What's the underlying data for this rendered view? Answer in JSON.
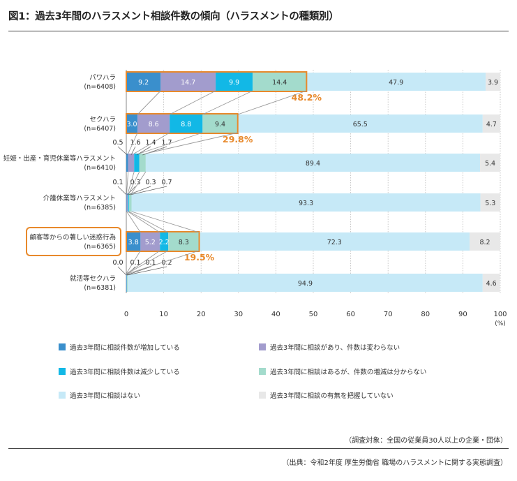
{
  "title": "図1：過去3年間のハラスメント相談件数の傾向（ハラスメントの種類別）",
  "notes": {
    "target": "（調査対象：全国の従業員30人以上の企業・団体）",
    "source": "（出典：令和2年度 厚生労働省 職場のハラスメントに関する実態調査）"
  },
  "chart_data": {
    "type": "bar",
    "orientation": "horizontal",
    "stacked": true,
    "xlim": [
      0,
      100
    ],
    "x_ticks": [
      "0",
      "10",
      "20",
      "30",
      "40",
      "50",
      "60",
      "70",
      "80",
      "90",
      "100"
    ],
    "x_unit": "(%)",
    "categories": [
      {
        "name": "パワハラ",
        "n": "(n=6408)",
        "total_text": "48.2%",
        "highlight": true,
        "label_highlight": false
      },
      {
        "name": "セクハラ",
        "n": "(n=6407)",
        "total_text": "29.8%",
        "highlight": true,
        "label_highlight": false
      },
      {
        "name": "妊娠・出産・育児休業等ハラスメント",
        "n": "(n=6410)",
        "total_text": "",
        "highlight": false,
        "label_highlight": false
      },
      {
        "name": "介護休業等ハラスメント",
        "n": "(n=6385)",
        "total_text": "",
        "highlight": false,
        "label_highlight": false
      },
      {
        "name": "顧客等からの著しい迷惑行為",
        "n": "(n=6365)",
        "total_text": "19.5%",
        "highlight": true,
        "label_highlight": true
      },
      {
        "name": "就活等セクハラ",
        "n": "(n=6381)",
        "total_text": "",
        "highlight": false,
        "label_highlight": false
      }
    ],
    "series": [
      {
        "name": "過去3年間に相談件数が増加している",
        "color": "#3a8fcc",
        "values": [
          9.2,
          3.0,
          0.5,
          0.1,
          3.8,
          0.0
        ],
        "labels": [
          "9.2",
          "3.0",
          "0.5",
          "0.1",
          "3.8",
          "0.0"
        ]
      },
      {
        "name": "過去3年間に相談があり、件数は変わらない",
        "color": "#a29ccd",
        "values": [
          14.7,
          8.6,
          1.6,
          0.3,
          5.2,
          0.1
        ],
        "labels": [
          "14.7",
          "8.6",
          "1.6",
          "0.3",
          "5.2",
          "0.1"
        ]
      },
      {
        "name": "過去3年間に相談件数は減少している",
        "color": "#12b8e6",
        "values": [
          9.9,
          8.8,
          1.4,
          0.3,
          2.2,
          0.1
        ],
        "labels": [
          "9.9",
          "8.8",
          "1.4",
          "0.3",
          "2.2",
          "0.1"
        ]
      },
      {
        "name": "過去3年間に相談はあるが、件数の増減は分からない",
        "color": "#a3dbcc",
        "values": [
          14.4,
          9.4,
          1.7,
          0.7,
          8.3,
          0.2
        ],
        "labels": [
          "14.4",
          "9.4",
          "1.7",
          "0.7",
          "8.3",
          "0.2"
        ]
      },
      {
        "name": "過去3年間に相談はない",
        "color": "#c6e9f7",
        "values": [
          47.9,
          65.5,
          89.4,
          93.3,
          72.3,
          94.9
        ],
        "labels": [
          "47.9",
          "65.5",
          "89.4",
          "93.3",
          "72.3",
          "94.9"
        ]
      },
      {
        "name": "過去3年間に相談の有無を把握していない",
        "color": "#e8e8e8",
        "values": [
          3.9,
          4.7,
          5.4,
          5.3,
          8.2,
          4.6
        ],
        "labels": [
          "3.9",
          "4.7",
          "5.4",
          "5.3",
          "8.2",
          "4.6"
        ]
      }
    ],
    "legend": "bottom",
    "highlight_color": "#e8892b"
  }
}
